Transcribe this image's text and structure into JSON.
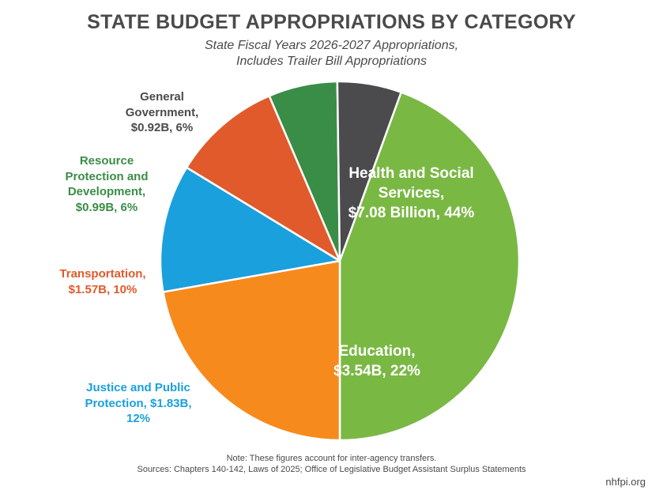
{
  "chart_data": {
    "type": "pie",
    "title": "STATE BUDGET APPROPRIATIONS BY CATEGORY",
    "subtitle": [
      "State Fiscal Years 2026-2027 Appropriations,",
      "Includes Trailer Bill Appropriations"
    ],
    "start_angle_deg": 20,
    "slices": [
      {
        "category": "Health and Social Services",
        "value": 7.08,
        "percent": 44,
        "color": "#7ab844",
        "label_lines": [
          "Health and Social",
          "Services,",
          "$7.08 Billion, 44%"
        ]
      },
      {
        "category": "Education",
        "value": 3.54,
        "percent": 22,
        "color": "#f78a1d",
        "label_lines": [
          "Education,",
          "$3.54B, 22%"
        ]
      },
      {
        "category": "Justice and Public Protection",
        "value": 1.83,
        "percent": 12,
        "color": "#1aa0dd",
        "label_lines": [
          "Justice and Public",
          "Protection, $1.83B,",
          "12%"
        ]
      },
      {
        "category": "Transportation",
        "value": 1.57,
        "percent": 10,
        "color": "#e05a2b",
        "label_lines": [
          "Transportation,",
          "$1.57B, 10%"
        ]
      },
      {
        "category": "Resource Protection and Development",
        "value": 0.99,
        "percent": 6,
        "color": "#3a8d46",
        "label_lines": [
          "Resource",
          "Protection and",
          "Development,",
          "$0.99B, 6%"
        ]
      },
      {
        "category": "General Government",
        "value": 0.92,
        "percent": 6,
        "color": "#4b4b4d",
        "label_lines": [
          "General",
          "Government,",
          "$0.92B, 6%"
        ]
      }
    ],
    "notes": [
      "Note: These figures account for inter-agency transfers.",
      "Sources: Chapters 140-142, Laws of 2025; Office of Legislative Budget Assistant Surplus Statements"
    ],
    "brand": "nhfpi.org"
  }
}
